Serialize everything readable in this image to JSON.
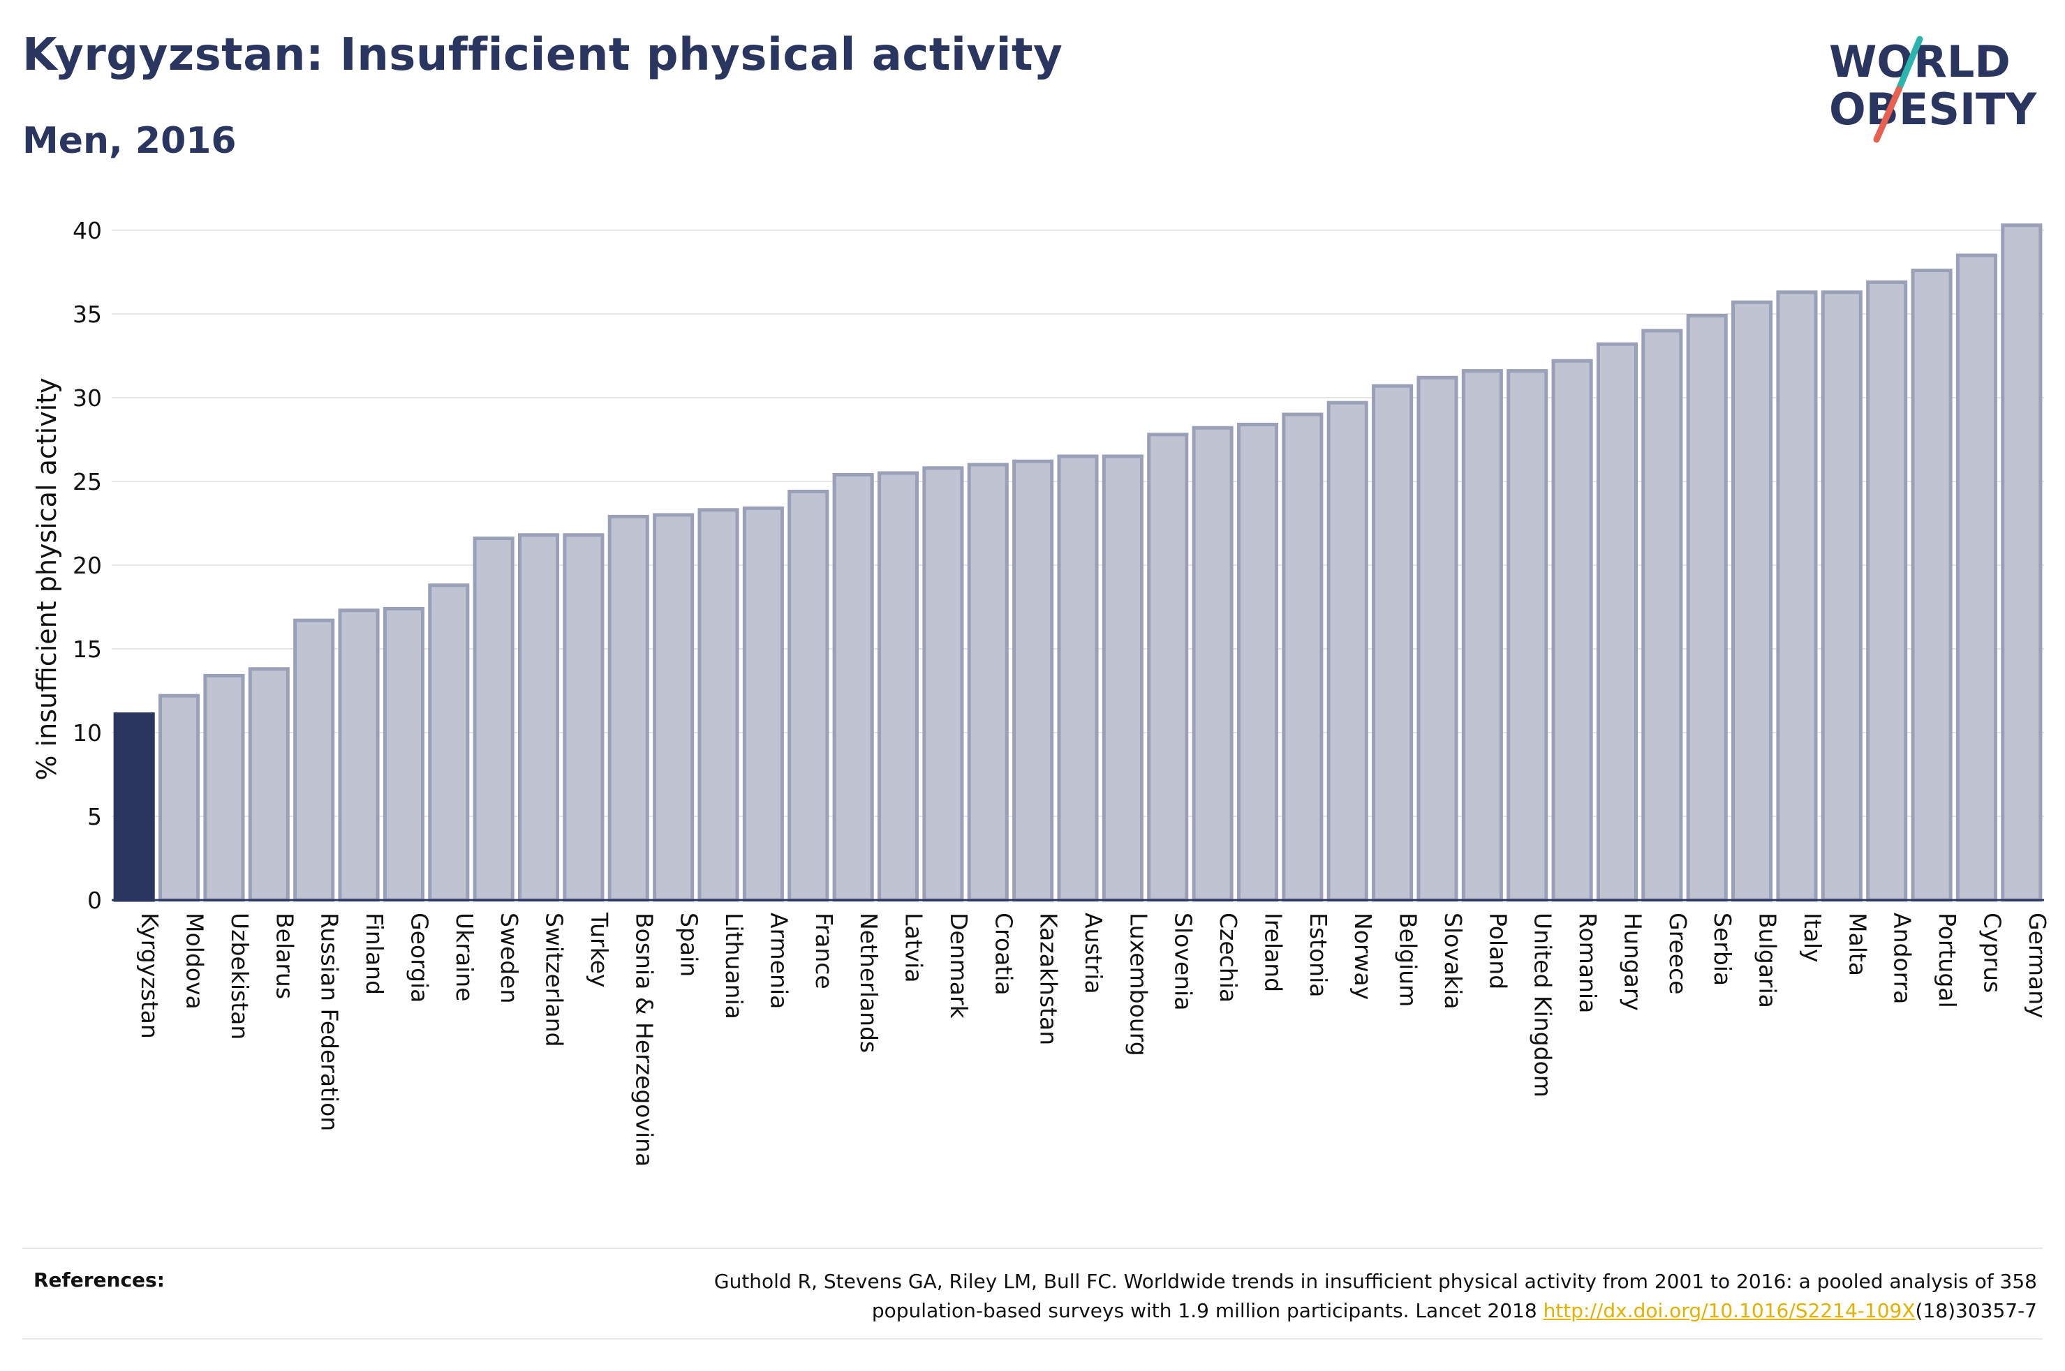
{
  "header": {
    "title": "Kyrgyzstan: Insufficient physical activity",
    "subtitle": "Men, 2016"
  },
  "logo": {
    "line1": "WORLD",
    "line2": "OBESITY",
    "text_color": "#2a3560",
    "slash_teal": "#2bb5ad",
    "slash_red": "#e8604f"
  },
  "chart_data": {
    "type": "bar",
    "ylabel": "% insufficient physical activity",
    "xlabel": "",
    "ylim": [
      0,
      40
    ],
    "yticks": [
      0,
      5,
      10,
      15,
      20,
      25,
      30,
      35,
      40
    ],
    "grid": true,
    "highlight": "Kyrgyzstan",
    "highlight_color": "#2a3560",
    "bar_color": "#c0c4d2",
    "bar_border_color": "#9aa0b8",
    "categories": [
      "Kyrgyzstan",
      "Moldova",
      "Uzbekistan",
      "Belarus",
      "Russian Federation",
      "Finland",
      "Georgia",
      "Ukraine",
      "Sweden",
      "Switzerland",
      "Turkey",
      "Bosnia & Herzegovina",
      "Spain",
      "Lithuania",
      "Armenia",
      "France",
      "Netherlands",
      "Latvia",
      "Denmark",
      "Croatia",
      "Kazakhstan",
      "Austria",
      "Luxembourg",
      "Slovenia",
      "Czechia",
      "Ireland",
      "Estonia",
      "Norway",
      "Belgium",
      "Slovakia",
      "Poland",
      "United Kingdom",
      "Romania",
      "Hungary",
      "Greece",
      "Serbia",
      "Bulgaria",
      "Italy",
      "Malta",
      "Andorra",
      "Portugal",
      "Cyprus",
      "Germany"
    ],
    "values": [
      11.1,
      12.2,
      13.4,
      13.8,
      16.7,
      17.3,
      17.4,
      18.8,
      21.6,
      21.8,
      21.8,
      22.9,
      23.0,
      23.3,
      23.4,
      24.4,
      25.4,
      25.5,
      25.8,
      26.0,
      26.2,
      26.5,
      26.5,
      27.8,
      28.2,
      28.4,
      29.0,
      29.7,
      30.7,
      31.2,
      31.6,
      31.6,
      32.2,
      33.2,
      34.0,
      34.9,
      35.7,
      36.3,
      36.3,
      36.9,
      37.6,
      38.5,
      40.3
    ]
  },
  "references": {
    "label": "References:",
    "line1": "Guthold R, Stevens GA, Riley LM, Bull FC. Worldwide trends in insufficient physical activity from 2001 to 2016: a pooled analysis of 358",
    "line2_before": "population-based surveys with 1.9 million participants. Lancet 2018 ",
    "link": "http://dx.doi.org/10.1016/S2214-109X",
    "line2_after": "(18)30357-7"
  }
}
